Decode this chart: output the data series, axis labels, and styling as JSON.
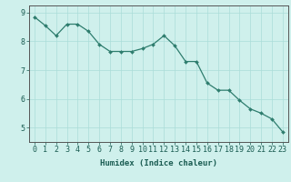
{
  "x": [
    0,
    1,
    2,
    3,
    4,
    5,
    6,
    7,
    8,
    9,
    10,
    11,
    12,
    13,
    14,
    15,
    16,
    17,
    18,
    19,
    20,
    21,
    22,
    23
  ],
  "y": [
    8.85,
    8.55,
    8.2,
    8.6,
    8.6,
    8.35,
    7.9,
    7.65,
    7.65,
    7.65,
    7.75,
    7.9,
    8.2,
    7.85,
    7.3,
    7.3,
    6.55,
    6.3,
    6.3,
    5.95,
    5.65,
    5.5,
    5.3,
    4.85
  ],
  "line_color": "#2e7d6e",
  "marker": "D",
  "markersize": 2.0,
  "linewidth": 0.9,
  "bg_color": "#cff0ec",
  "grid_color": "#aaddd8",
  "xlabel": "Humidex (Indice chaleur)",
  "xlim": [
    -0.5,
    23.5
  ],
  "ylim": [
    4.5,
    9.25
  ],
  "yticks": [
    5,
    6,
    7,
    8,
    9
  ],
  "xticks": [
    0,
    1,
    2,
    3,
    4,
    5,
    6,
    7,
    8,
    9,
    10,
    11,
    12,
    13,
    14,
    15,
    16,
    17,
    18,
    19,
    20,
    21,
    22,
    23
  ],
  "xlabel_fontsize": 6.5,
  "tick_fontsize": 6.0,
  "axis_color": "#555555",
  "label_color": "#1a5c52"
}
